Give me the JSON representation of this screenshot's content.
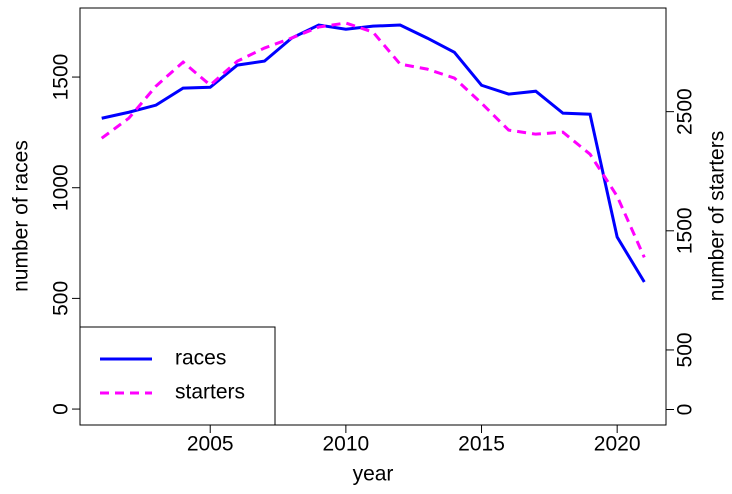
{
  "chart_data": {
    "type": "line",
    "x_label": "year",
    "y_label": "number of races",
    "y2_label": "number of starters",
    "x": [
      2001,
      2002,
      2003,
      2004,
      2005,
      2006,
      2007,
      2008,
      2009,
      2010,
      2011,
      2012,
      2013,
      2014,
      2015,
      2016,
      2017,
      2018,
      2019,
      2020,
      2021
    ],
    "series": [
      {
        "name": "races",
        "color": "#0000ff",
        "dash": "solid",
        "values": [
          1314,
          1341,
          1373,
          1450,
          1454,
          1554,
          1572,
          1676,
          1735,
          1716,
          1730,
          1735,
          1676,
          1612,
          1463,
          1423,
          1436,
          1337,
          1332,
          777,
          574
        ]
      },
      {
        "name": "starters",
        "color": "#ff00ff",
        "dash": "dashed",
        "axis": "y2",
        "values": [
          2277,
          2445,
          2714,
          2916,
          2723,
          2924,
          3034,
          3118,
          3210,
          3244,
          3168,
          2899,
          2857,
          2782,
          2571,
          2345,
          2311,
          2328,
          2143,
          1790,
          1277
        ]
      }
    ],
    "xlim": [
      2000.2,
      2021.8
    ],
    "xticks": [
      2005,
      2010,
      2015,
      2020
    ],
    "ylim": [
      -72,
      1812
    ],
    "yticks": [
      0,
      500,
      1000,
      1500
    ],
    "y2lim": [
      -130,
      3370
    ],
    "y2ticks": [
      0,
      500,
      1500,
      2500
    ],
    "legend": "bottom-left"
  }
}
